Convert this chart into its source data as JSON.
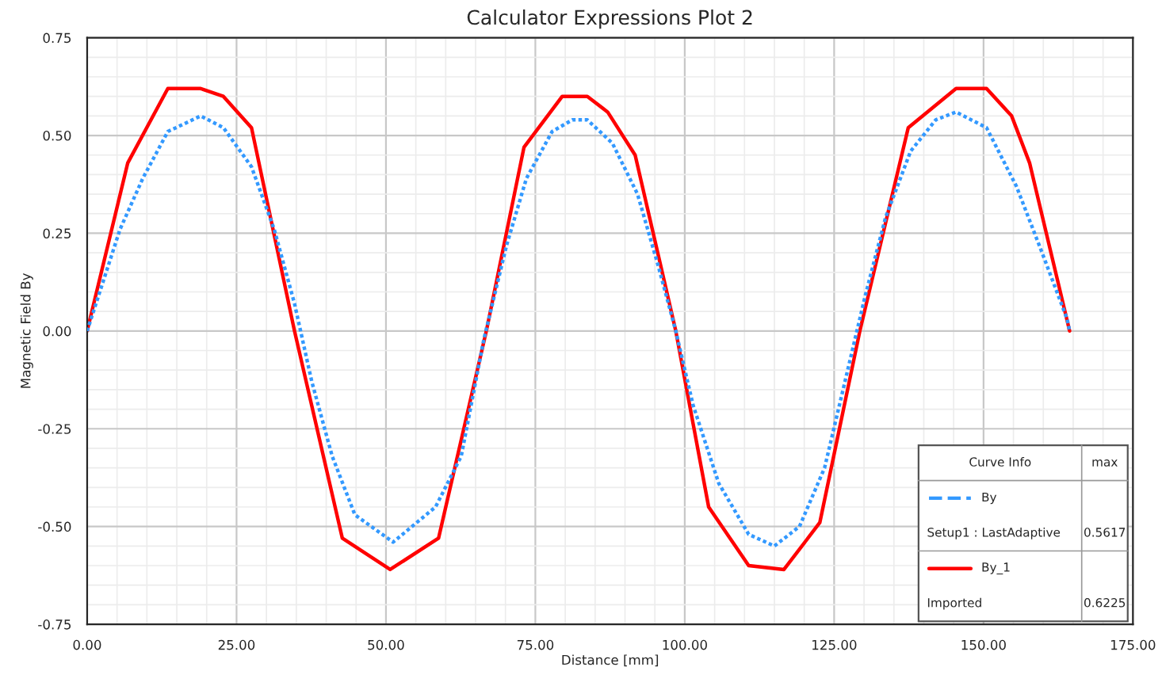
{
  "chart_data": {
    "type": "line",
    "title": "Calculator Expressions Plot 2",
    "xlabel": "Distance [mm]",
    "ylabel": "Magnetic Field By",
    "xlim": [
      0,
      175
    ],
    "xticks": [
      {
        "value": 0,
        "label": "0.00"
      },
      {
        "value": 25,
        "label": "25.00"
      },
      {
        "value": 50,
        "label": "50.00"
      },
      {
        "value": 75,
        "label": "75.00"
      },
      {
        "value": 100,
        "label": "100.00"
      },
      {
        "value": 125,
        "label": "125.00"
      },
      {
        "value": 150,
        "label": "150.00"
      },
      {
        "value": 175,
        "label": "175.00"
      }
    ],
    "ylim": [
      -0.75,
      0.75
    ],
    "yticks": [
      {
        "value": -0.75,
        "label": "-0.75"
      },
      {
        "value": -0.5,
        "label": "-0.50"
      },
      {
        "value": -0.25,
        "label": "-0.25"
      },
      {
        "value": 0,
        "label": "0.00"
      },
      {
        "value": 0.25,
        "label": "0.25"
      },
      {
        "value": 0.5,
        "label": "0.50"
      },
      {
        "value": 0.75,
        "label": "0.75"
      }
    ],
    "grid": true,
    "legend": "bottom right",
    "legend_title": "Curve Info",
    "annotations": [
      "max",
      "Setup1 : LastAdaptive",
      "0.5617",
      "Imported",
      "0.6225"
    ],
    "series": [
      {
        "name": "By",
        "color": "#3399ff",
        "line_style": "dotted",
        "x": [
          0,
          5.5,
          9.3,
          13.5,
          19.0,
          22.8,
          27.5,
          31.3,
          34.7,
          37.6,
          41.0,
          44.8,
          51.2,
          58.3,
          62.6,
          66.4,
          70.2,
          73.5,
          77.8,
          81.2,
          83.7,
          87.9,
          92.1,
          95.5,
          98.5,
          101.4,
          105.7,
          110.7,
          115.0,
          119.2,
          123.4,
          126.8,
          130.2,
          133.6,
          137.8,
          142.0,
          145.4,
          150.5,
          155.5,
          159.8,
          164.0,
          164.4
        ],
        "values": [
          0,
          0.26,
          0.39,
          0.51,
          0.55,
          0.52,
          0.42,
          0.26,
          0.07,
          -0.13,
          -0.32,
          -0.47,
          -0.54,
          -0.45,
          -0.32,
          -0.02,
          0.22,
          0.39,
          0.51,
          0.54,
          0.54,
          0.48,
          0.35,
          0.17,
          0,
          -0.19,
          -0.39,
          -0.52,
          -0.55,
          -0.5,
          -0.35,
          -0.13,
          0.09,
          0.29,
          0.46,
          0.54,
          0.56,
          0.52,
          0.37,
          0.2,
          0.03,
          0
        ]
      },
      {
        "name": "By_1",
        "color": "#ff0000",
        "line_style": "solid",
        "x": [
          0,
          6.8,
          13.5,
          19.0,
          22.8,
          27.5,
          34.7,
          42.7,
          50.7,
          58.8,
          66.8,
          73.1,
          79.5,
          83.7,
          87.1,
          91.7,
          98.5,
          104.0,
          110.7,
          116.6,
          122.6,
          129.3,
          137.4,
          145.4,
          150.5,
          154.7,
          157.7,
          164.4
        ],
        "values": [
          0,
          0.43,
          0.62,
          0.62,
          0.6,
          0.52,
          0,
          -0.53,
          -0.61,
          -0.53,
          0,
          0.47,
          0.6,
          0.6,
          0.56,
          0.45,
          0,
          -0.45,
          -0.6,
          -0.61,
          -0.49,
          0,
          0.52,
          0.62,
          0.62,
          0.55,
          0.43,
          0
        ]
      }
    ]
  }
}
